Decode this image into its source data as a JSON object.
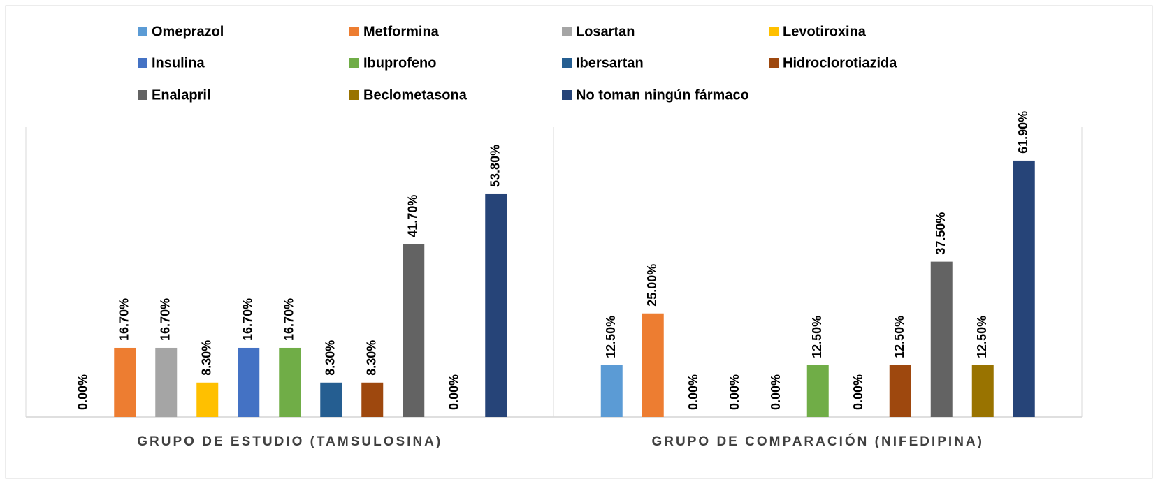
{
  "chart_data": {
    "type": "bar",
    "categories": [
      "GRUPO DE ESTUDIO (TAMSULOSINA)",
      "GRUPO DE COMPARACIÓN (NIFEDIPINA)"
    ],
    "series": [
      {
        "name": "Omeprazol",
        "color": "#5b9bd5",
        "values": [
          0,
          12.5
        ],
        "value_labels": [
          "0.00%",
          "12.50%"
        ]
      },
      {
        "name": "Metformina",
        "color": "#ed7d31",
        "values": [
          16.7,
          25
        ],
        "value_labels": [
          "16.70%",
          "25.00%"
        ]
      },
      {
        "name": "Losartan",
        "color": "#a5a5a5",
        "values": [
          16.7,
          0
        ],
        "value_labels": [
          "16.70%",
          "0.00%"
        ]
      },
      {
        "name": "Levotiroxina",
        "color": "#ffc000",
        "values": [
          8.3,
          0
        ],
        "value_labels": [
          "8.30%",
          "0.00%"
        ]
      },
      {
        "name": "Insulina",
        "color": "#4472c4",
        "values": [
          16.7,
          0
        ],
        "value_labels": [
          "16.70%",
          "0.00%"
        ]
      },
      {
        "name": "Ibuprofeno",
        "color": "#70ad47",
        "values": [
          16.7,
          12.5
        ],
        "value_labels": [
          "16.70%",
          "12.50%"
        ]
      },
      {
        "name": "Ibersartan",
        "color": "#255e91",
        "values": [
          8.3,
          0
        ],
        "value_labels": [
          "8.30%",
          "0.00%"
        ]
      },
      {
        "name": "Hidroclorotiazida",
        "color": "#9e480e",
        "values": [
          8.3,
          12.5
        ],
        "value_labels": [
          "8.30%",
          "12.50%"
        ]
      },
      {
        "name": "Enalapril",
        "color": "#636363",
        "values": [
          41.7,
          37.5
        ],
        "value_labels": [
          "41.70%",
          "37.50%"
        ]
      },
      {
        "name": "Beclometasona",
        "color": "#997300",
        "values": [
          0,
          12.5
        ],
        "value_labels": [
          "0.00%",
          "12.50%"
        ]
      },
      {
        "name": "No toman ningún fármaco",
        "color": "#264478",
        "values": [
          53.8,
          61.9
        ],
        "value_labels": [
          "53.80%",
          "61.90%"
        ]
      }
    ]
  }
}
